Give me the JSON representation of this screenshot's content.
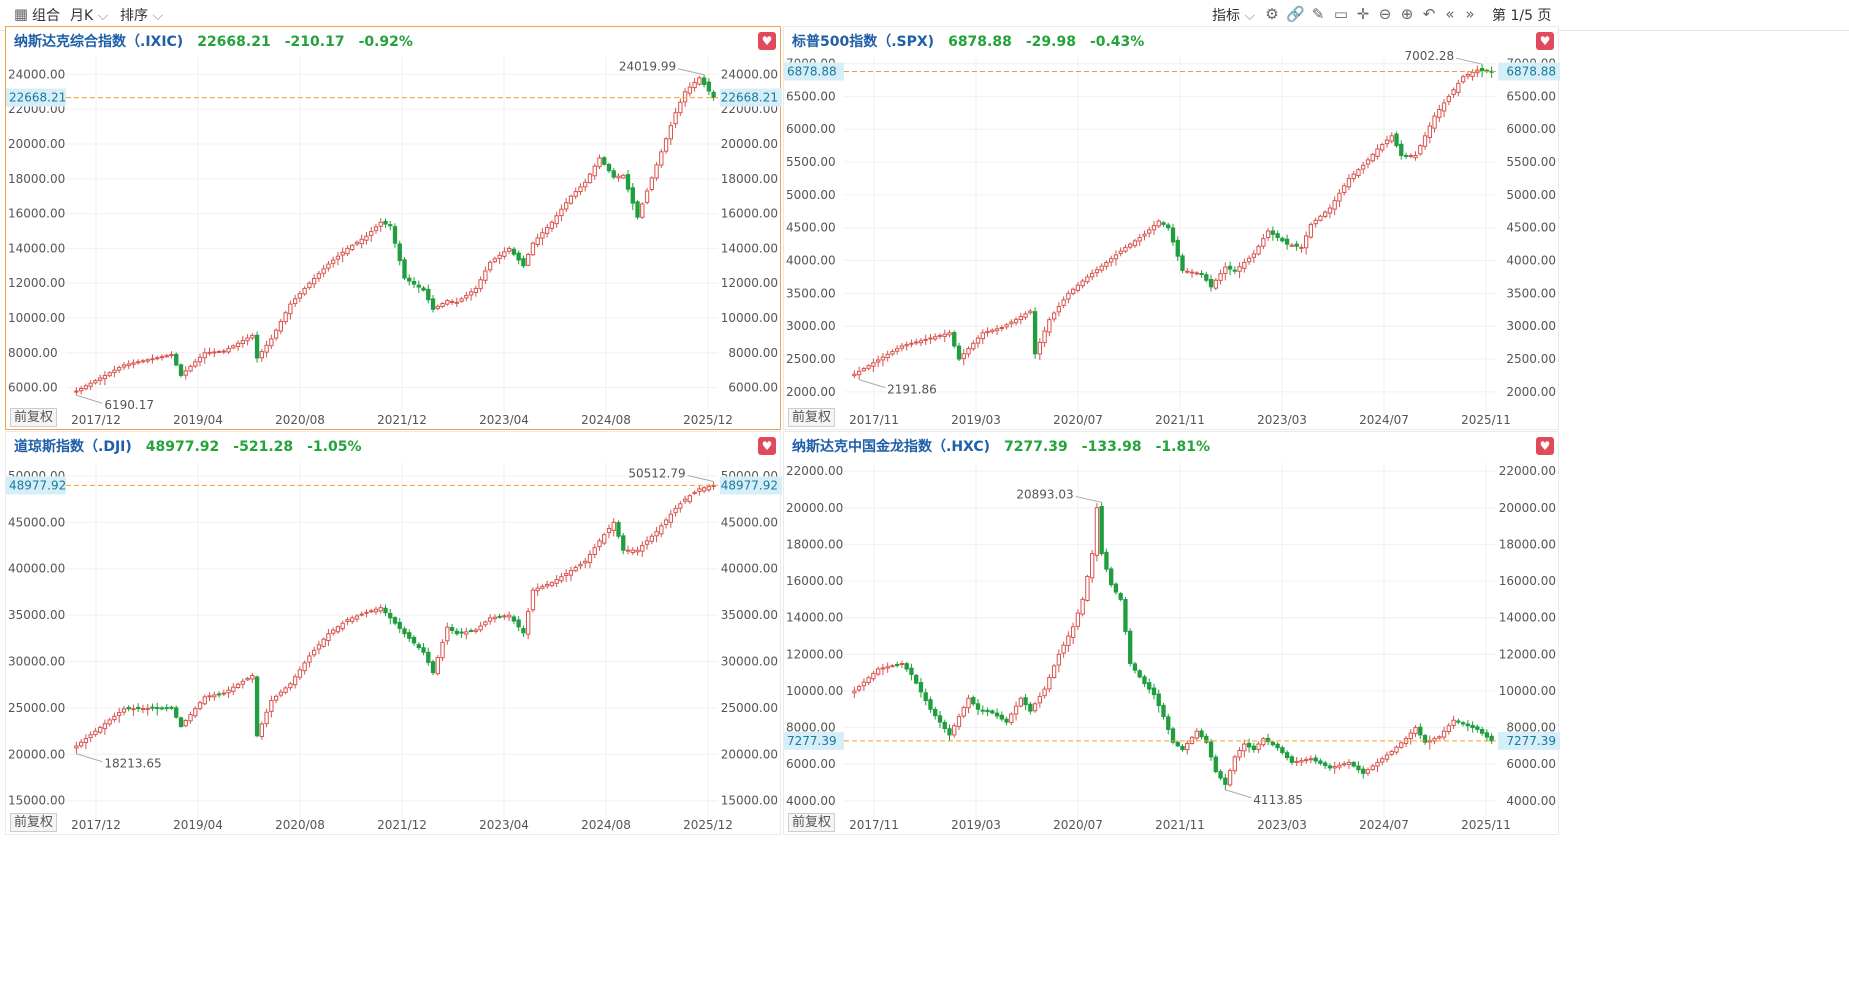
{
  "toolbar": {
    "combo_label": "组合",
    "period_label": "月K",
    "sort_label": "排序",
    "indicator_label": "指标",
    "page_label": "第 1/5 页",
    "icons": [
      "settings-icon",
      "link-icon",
      "pen-icon",
      "comment-icon",
      "crosshair-icon",
      "zoom-out-icon",
      "zoom-in-icon",
      "undo-icon",
      "prev-page-icon",
      "next-page-icon"
    ]
  },
  "colors": {
    "up": "#d9534f",
    "down": "#1f9e3e",
    "price_line": "#f0a030",
    "title": "#1f5fa8",
    "quote": "#23a33a",
    "tag_bg": "#d6eef8"
  },
  "adj_label": "前复权",
  "chart_data": [
    {
      "type": "candlestick",
      "name": "纳斯达克综合指数（.IXIC)",
      "price": "22668.21",
      "change": "-210.17",
      "pct": "-0.92%",
      "last": 22668.21,
      "ylim": [
        5000,
        25000
      ],
      "yticks": [
        6000,
        8000,
        10000,
        12000,
        14000,
        16000,
        18000,
        20000,
        22000,
        24000
      ],
      "xticks": [
        "2017/12",
        "2019/04",
        "2020/08",
        "2021/12",
        "2023/04",
        "2024/08",
        "2025/12"
      ],
      "start": "2017/02",
      "high_label": "24019.99",
      "low_label": "6190.17",
      "anchors": [
        [
          0,
          5800
        ],
        [
          10,
          7300
        ],
        [
          20,
          7900
        ],
        [
          22,
          6700
        ],
        [
          27,
          8000
        ],
        [
          31,
          8100
        ],
        [
          37,
          9000
        ],
        [
          38,
          7700
        ],
        [
          41,
          8800
        ],
        [
          45,
          10800
        ],
        [
          49,
          12000
        ],
        [
          53,
          13100
        ],
        [
          57,
          14000
        ],
        [
          61,
          14700
        ],
        [
          64,
          15500
        ],
        [
          66,
          15300
        ],
        [
          69,
          12300
        ],
        [
          73,
          11600
        ],
        [
          75,
          10500
        ],
        [
          78,
          11000
        ],
        [
          80,
          10900
        ],
        [
          84,
          11700
        ],
        [
          87,
          13200
        ],
        [
          91,
          14000
        ],
        [
          94,
          13000
        ],
        [
          96,
          14300
        ],
        [
          100,
          15500
        ],
        [
          104,
          17000
        ],
        [
          107,
          17800
        ],
        [
          110,
          19200
        ],
        [
          113,
          18100
        ],
        [
          115,
          18200
        ],
        [
          118,
          15800
        ],
        [
          122,
          18800
        ],
        [
          126,
          21800
        ],
        [
          128,
          23000
        ],
        [
          131,
          23800
        ],
        [
          134,
          22668
        ]
      ]
    },
    {
      "type": "candlestick",
      "name": "标普500指数（.SPX)",
      "price": "6878.88",
      "change": "-29.98",
      "pct": "-0.43%",
      "last": 6878.88,
      "ylim": [
        1800,
        7100
      ],
      "yticks": [
        2000,
        2500,
        3000,
        3500,
        4000,
        4500,
        5000,
        5500,
        6000,
        6500,
        7000
      ],
      "xticks": [
        "2017/11",
        "2019/03",
        "2020/07",
        "2021/11",
        "2023/03",
        "2024/07",
        "2025/11"
      ],
      "start": "2017/01",
      "high_label": "7002.28",
      "low_label": "2191.86",
      "anchors": [
        [
          0,
          2270
        ],
        [
          10,
          2700
        ],
        [
          20,
          2900
        ],
        [
          22,
          2500
        ],
        [
          27,
          2900
        ],
        [
          31,
          2980
        ],
        [
          37,
          3230
        ],
        [
          38,
          2580
        ],
        [
          41,
          3100
        ],
        [
          45,
          3500
        ],
        [
          49,
          3750
        ],
        [
          53,
          3970
        ],
        [
          57,
          4200
        ],
        [
          61,
          4400
        ],
        [
          64,
          4600
        ],
        [
          66,
          4500
        ],
        [
          69,
          3850
        ],
        [
          73,
          3800
        ],
        [
          75,
          3600
        ],
        [
          78,
          3900
        ],
        [
          80,
          3840
        ],
        [
          84,
          4100
        ],
        [
          87,
          4450
        ],
        [
          91,
          4250
        ],
        [
          94,
          4200
        ],
        [
          96,
          4550
        ],
        [
          100,
          4800
        ],
        [
          104,
          5250
        ],
        [
          107,
          5450
        ],
        [
          110,
          5700
        ],
        [
          113,
          5900
        ],
        [
          115,
          5600
        ],
        [
          118,
          5600
        ],
        [
          122,
          6200
        ],
        [
          126,
          6600
        ],
        [
          128,
          6800
        ],
        [
          131,
          6900
        ],
        [
          134,
          6878
        ]
      ]
    },
    {
      "type": "candlestick",
      "name": "道琼斯指数（.DJI)",
      "price": "48977.92",
      "change": "-521.28",
      "pct": "-1.05%",
      "last": 48977.92,
      "ylim": [
        14000,
        51500
      ],
      "yticks": [
        15000,
        20000,
        25000,
        30000,
        35000,
        40000,
        45000,
        50000
      ],
      "xticks": [
        "2017/12",
        "2019/04",
        "2020/08",
        "2021/12",
        "2023/04",
        "2024/08",
        "2025/12"
      ],
      "start": "2017/02",
      "high_label": "50512.79",
      "low_label": "18213.65",
      "anchors": [
        [
          0,
          20900
        ],
        [
          10,
          24900
        ],
        [
          20,
          25000
        ],
        [
          22,
          23000
        ],
        [
          27,
          26200
        ],
        [
          31,
          26600
        ],
        [
          37,
          28500
        ],
        [
          38,
          22000
        ],
        [
          41,
          25800
        ],
        [
          45,
          27600
        ],
        [
          49,
          30600
        ],
        [
          53,
          33000
        ],
        [
          57,
          34500
        ],
        [
          61,
          35300
        ],
        [
          64,
          35800
        ],
        [
          66,
          34700
        ],
        [
          69,
          33000
        ],
        [
          73,
          31000
        ],
        [
          75,
          28800
        ],
        [
          78,
          33700
        ],
        [
          80,
          33000
        ],
        [
          84,
          33400
        ],
        [
          87,
          34700
        ],
        [
          91,
          35000
        ],
        [
          94,
          33100
        ],
        [
          96,
          37700
        ],
        [
          100,
          38500
        ],
        [
          104,
          39800
        ],
        [
          107,
          40800
        ],
        [
          110,
          43000
        ],
        [
          113,
          45000
        ],
        [
          115,
          42000
        ],
        [
          118,
          42000
        ],
        [
          122,
          44000
        ],
        [
          126,
          46500
        ],
        [
          128,
          47500
        ],
        [
          131,
          48600
        ],
        [
          134,
          48977
        ]
      ]
    },
    {
      "type": "candlestick",
      "name": "纳斯达克中国金龙指数（.HXC)",
      "price": "7277.39",
      "change": "-133.98",
      "pct": "-1.81%",
      "last": 7277.39,
      "ylim": [
        3500,
        22500
      ],
      "yticks": [
        4000,
        6000,
        8000,
        10000,
        12000,
        14000,
        16000,
        18000,
        20000,
        22000
      ],
      "xticks": [
        "2017/11",
        "2019/03",
        "2020/07",
        "2021/11",
        "2023/03",
        "2024/07",
        "2025/11"
      ],
      "start": "2017/01",
      "high_label": "20893.03",
      "low_label": "4113.85",
      "anchors": [
        [
          0,
          10000
        ],
        [
          5,
          11200
        ],
        [
          10,
          11500
        ],
        [
          12,
          10900
        ],
        [
          16,
          9000
        ],
        [
          20,
          7600
        ],
        [
          22,
          8600
        ],
        [
          24,
          9600
        ],
        [
          26,
          9000
        ],
        [
          29,
          8800
        ],
        [
          32,
          8300
        ],
        [
          35,
          9600
        ],
        [
          37,
          8900
        ],
        [
          40,
          10100
        ],
        [
          43,
          12000
        ],
        [
          46,
          13500
        ],
        [
          48,
          15000
        ],
        [
          50,
          17500
        ],
        [
          51,
          20000
        ],
        [
          52,
          17500
        ],
        [
          54,
          15800
        ],
        [
          56,
          15000
        ],
        [
          58,
          11500
        ],
        [
          61,
          10400
        ],
        [
          63,
          9800
        ],
        [
          65,
          8600
        ],
        [
          67,
          7200
        ],
        [
          69,
          6800
        ],
        [
          72,
          7800
        ],
        [
          74,
          7200
        ],
        [
          76,
          5600
        ],
        [
          78,
          4900
        ],
        [
          80,
          6400
        ],
        [
          82,
          7100
        ],
        [
          84,
          6800
        ],
        [
          86,
          7400
        ],
        [
          89,
          6900
        ],
        [
          92,
          6100
        ],
        [
          96,
          6300
        ],
        [
          100,
          5800
        ],
        [
          104,
          6100
        ],
        [
          107,
          5500
        ],
        [
          110,
          6100
        ],
        [
          113,
          6700
        ],
        [
          116,
          7400
        ],
        [
          118,
          8000
        ],
        [
          120,
          7200
        ],
        [
          123,
          7500
        ],
        [
          126,
          8400
        ],
        [
          128,
          8200
        ],
        [
          131,
          7900
        ],
        [
          134,
          7277
        ]
      ]
    }
  ]
}
